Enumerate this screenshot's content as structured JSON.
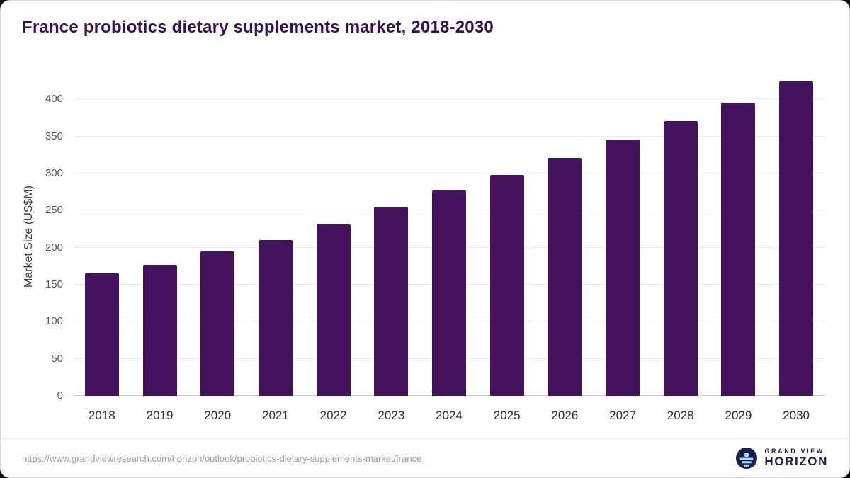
{
  "title": "France probiotics dietary supplements market, 2018-2030",
  "colors": {
    "bar": "#45125e",
    "title": "#3b0f56",
    "logo_navy": "#1b1c4e",
    "logo_blue": "#9fdcf8"
  },
  "chart_data": {
    "type": "bar",
    "title": "France probiotics dietary supplements market, 2018-2030",
    "categories": [
      "2018",
      "2019",
      "2020",
      "2021",
      "2022",
      "2023",
      "2024",
      "2025",
      "2026",
      "2027",
      "2028",
      "2029",
      "2030"
    ],
    "values": [
      165,
      177,
      195,
      210,
      231,
      255,
      277,
      298,
      321,
      346,
      371,
      396,
      424
    ],
    "xlabel": "",
    "ylabel": "Market Size (US$M)",
    "ylim": [
      0,
      430
    ],
    "yticks": [
      0,
      50,
      100,
      150,
      200,
      250,
      300,
      350,
      400
    ],
    "grid": true,
    "legend": "none",
    "bar_color": "#45125e"
  },
  "footer": {
    "source_url": "https://www.grandviewresearch.com/horizon/outlook/probiotics-dietary-supplements-market/france",
    "logo_text_top": "GRAND VIEW",
    "logo_text_bottom": "HORIZON"
  }
}
